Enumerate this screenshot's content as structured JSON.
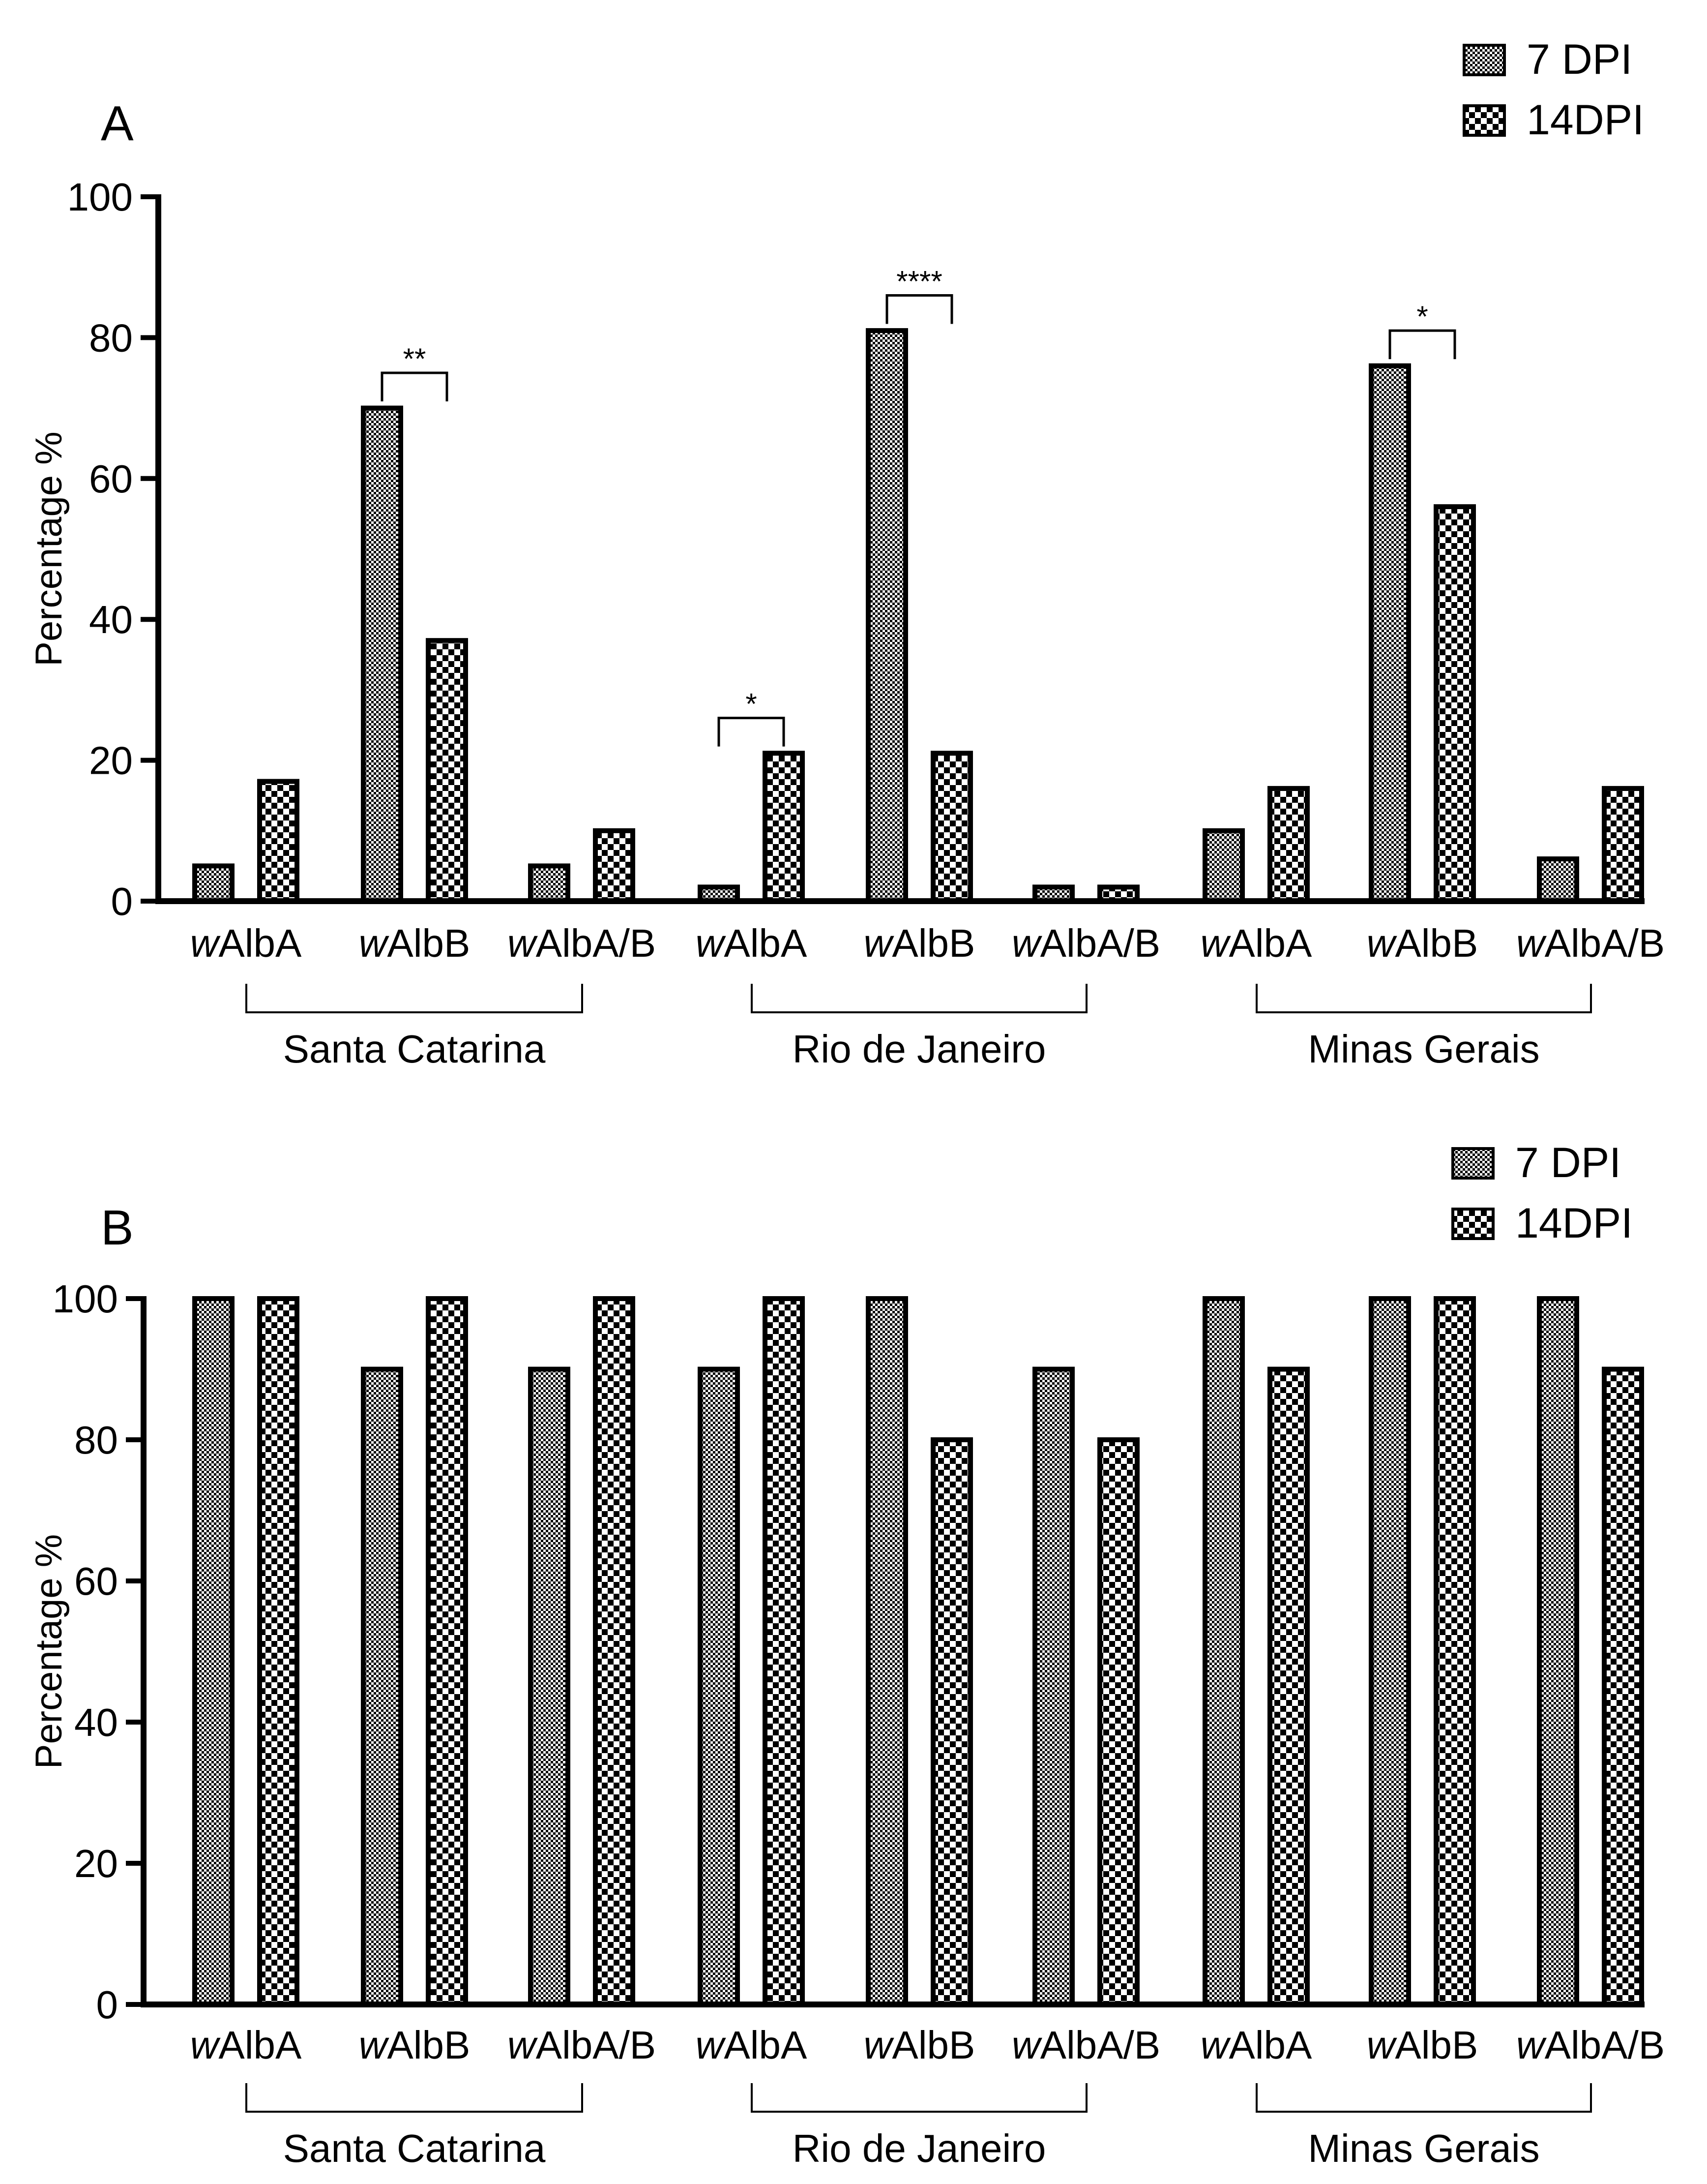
{
  "figure": {
    "legend": {
      "series_7dpi": "7 DPI",
      "series_14dpi": "14DPI"
    }
  },
  "chart_data": [
    {
      "panel_label": "A",
      "type": "bar",
      "ylabel": "Percentage %",
      "xlabel": "",
      "ylim": [
        0,
        100
      ],
      "yticks": [
        0,
        20,
        40,
        60,
        80,
        100
      ],
      "legend_position": "top-right",
      "categories": [
        {
          "prefix": "w",
          "rest": "AlbA"
        },
        {
          "prefix": "w",
          "rest": "AlbB"
        },
        {
          "prefix": "w",
          "rest": "AlbA/B"
        },
        {
          "prefix": "w",
          "rest": "AlbA"
        },
        {
          "prefix": "w",
          "rest": "AlbB"
        },
        {
          "prefix": "w",
          "rest": "AlbA/B"
        },
        {
          "prefix": "w",
          "rest": "AlbA"
        },
        {
          "prefix": "w",
          "rest": "AlbB"
        },
        {
          "prefix": "w",
          "rest": "AlbA/B"
        }
      ],
      "groups": [
        {
          "label": "Santa Catarina",
          "start": 0,
          "end": 2
        },
        {
          "label": "Rio de Janeiro",
          "start": 3,
          "end": 5
        },
        {
          "label": "Minas Gerais",
          "start": 6,
          "end": 8
        }
      ],
      "series": [
        {
          "name": "7 DPI",
          "pattern": "dense",
          "values": [
            5,
            70,
            5,
            2,
            81,
            2,
            10,
            76,
            6
          ]
        },
        {
          "name": "14DPI",
          "pattern": "checker",
          "values": [
            17,
            37,
            10,
            21,
            21,
            2,
            16,
            56,
            16
          ]
        }
      ],
      "annotations": [
        {
          "category": 1,
          "text": "**",
          "level": 75
        },
        {
          "category": 3,
          "text": "*",
          "level": 26
        },
        {
          "category": 4,
          "text": "****",
          "level": 86
        },
        {
          "category": 7,
          "text": "*",
          "level": 81
        }
      ]
    },
    {
      "panel_label": "B",
      "type": "bar",
      "ylabel": "Percentage %",
      "xlabel": "",
      "ylim": [
        0,
        100
      ],
      "yticks": [
        0,
        20,
        40,
        60,
        80,
        100
      ],
      "legend_position": "top-right",
      "categories": [
        {
          "prefix": "w",
          "rest": "AlbA"
        },
        {
          "prefix": "w",
          "rest": "AlbB"
        },
        {
          "prefix": "w",
          "rest": "AlbA/B"
        },
        {
          "prefix": "w",
          "rest": "AlbA"
        },
        {
          "prefix": "w",
          "rest": "AlbB"
        },
        {
          "prefix": "w",
          "rest": "AlbA/B"
        },
        {
          "prefix": "w",
          "rest": "AlbA"
        },
        {
          "prefix": "w",
          "rest": "AlbB"
        },
        {
          "prefix": "w",
          "rest": "AlbA/B"
        }
      ],
      "groups": [
        {
          "label": "Santa Catarina",
          "start": 0,
          "end": 2
        },
        {
          "label": "Rio de Janeiro",
          "start": 3,
          "end": 5
        },
        {
          "label": "Minas Gerais",
          "start": 6,
          "end": 8
        }
      ],
      "series": [
        {
          "name": "7 DPI",
          "pattern": "dense",
          "values": [
            100,
            90,
            90,
            90,
            100,
            90,
            100,
            100,
            100
          ]
        },
        {
          "name": "14DPI",
          "pattern": "checker",
          "values": [
            100,
            100,
            100,
            100,
            80,
            80,
            90,
            100,
            90
          ]
        }
      ],
      "annotations": []
    }
  ]
}
